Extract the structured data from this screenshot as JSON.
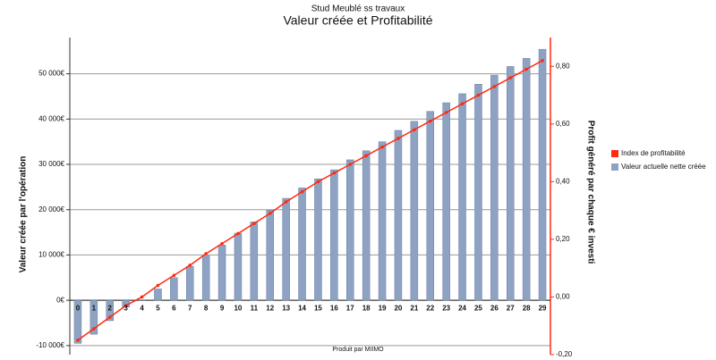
{
  "chart_data": {
    "type": "bar",
    "subtitle": "Stud Meublé ss travaux",
    "title": "Valeur créée et Profitabilité",
    "xlabel": "Produit par MIIMO",
    "ylabel": "Valeur créée par l'opération",
    "y2label": "Profit généré par chaque € investi",
    "categories": [
      "0",
      "1",
      "2",
      "3",
      "4",
      "5",
      "6",
      "7",
      "8",
      "9",
      "10",
      "11",
      "12",
      "13",
      "14",
      "15",
      "16",
      "17",
      "18",
      "19",
      "20",
      "21",
      "22",
      "23",
      "24",
      "25",
      "26",
      "27",
      "28",
      "29"
    ],
    "series": [
      {
        "name": "Valeur actuelle nette créée",
        "type": "bar",
        "color": "#8ea3c4",
        "values": [
          -9500,
          -7500,
          -4500,
          -1500,
          0,
          2500,
          5000,
          7500,
          9800,
          12200,
          14800,
          17300,
          19900,
          22500,
          24800,
          26800,
          28800,
          31000,
          33000,
          35000,
          37500,
          39500,
          41700,
          43600,
          45600,
          47700,
          49700,
          51600,
          53400,
          55400
        ]
      },
      {
        "name": "Index de profitabilité",
        "type": "line",
        "axis": "y2",
        "color": "#ff2a10",
        "values": [
          -0.15,
          -0.11,
          -0.07,
          -0.03,
          0.0,
          0.04,
          0.075,
          0.11,
          0.15,
          0.185,
          0.22,
          0.255,
          0.29,
          0.33,
          0.365,
          0.4,
          0.43,
          0.46,
          0.49,
          0.52,
          0.55,
          0.58,
          0.61,
          0.64,
          0.67,
          0.7,
          0.73,
          0.76,
          0.79,
          0.82
        ]
      }
    ],
    "ylim": [
      -12000,
      58000
    ],
    "yticks": [
      {
        "value": -10000,
        "label": "-10 000€"
      },
      {
        "value": 0,
        "label": "0€"
      },
      {
        "value": 10000,
        "label": "10 000€"
      },
      {
        "value": 20000,
        "label": "20 000€"
      },
      {
        "value": 30000,
        "label": "30 000€"
      },
      {
        "value": 40000,
        "label": "40 000€"
      },
      {
        "value": 50000,
        "label": "50 000€"
      }
    ],
    "y2lim": [
      -0.2,
      0.9
    ],
    "y2ticks": [
      {
        "value": -0.2,
        "label": "-0,20"
      },
      {
        "value": 0,
        "label": "0,00"
      },
      {
        "value": 0.2,
        "label": "0,20"
      },
      {
        "value": 0.4,
        "label": "0,40"
      },
      {
        "value": 0.6,
        "label": "0,60"
      },
      {
        "value": 0.8,
        "label": "0,80"
      }
    ],
    "grid": true
  }
}
